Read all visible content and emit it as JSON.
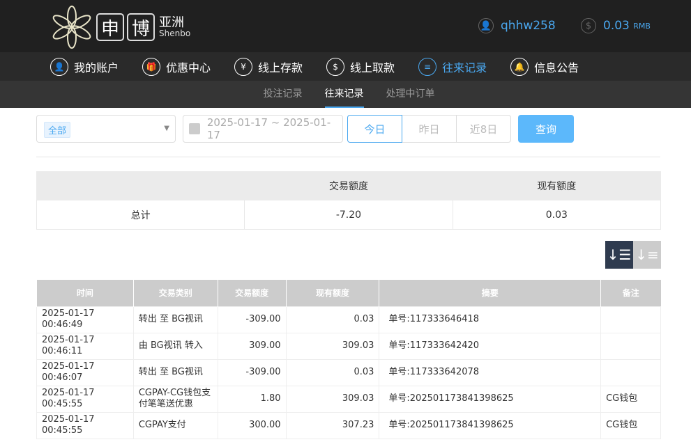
{
  "header": {
    "logo_chars": [
      "申",
      "博"
    ],
    "logo_cn": "亚洲",
    "logo_en": "Shenbo",
    "username": "qhhw258",
    "balance": "0.03",
    "currency": "RMB",
    "accent": "#4aa8f0"
  },
  "nav": [
    {
      "label": "我的账户",
      "icon": "user-icon"
    },
    {
      "label": "优惠中心",
      "icon": "gift-icon"
    },
    {
      "label": "线上存款",
      "icon": "deposit-icon"
    },
    {
      "label": "线上取款",
      "icon": "withdraw-icon"
    },
    {
      "label": "往来记录",
      "icon": "records-icon",
      "active": true
    },
    {
      "label": "信息公告",
      "icon": "bell-icon"
    }
  ],
  "subnav": [
    {
      "label": "投注记录"
    },
    {
      "label": "往来记录",
      "active": true
    },
    {
      "label": "处理中订单"
    }
  ],
  "filters": {
    "type_tag": "全部",
    "date_range": "2025-01-17 ~ 2025-01-17",
    "quick": [
      "今日",
      "昨日",
      "近8日"
    ],
    "query": "查询"
  },
  "summary": {
    "headers": [
      "",
      "交易额度",
      "现有额度"
    ],
    "row": [
      "总计",
      "-7.20",
      "0.03"
    ]
  },
  "table": {
    "headers": [
      "时间",
      "交易类别",
      "交易额度",
      "现有额度",
      "摘要",
      "备注"
    ],
    "rows": [
      [
        "2025-01-17 00:46:49",
        "转出 至 BG视讯",
        "-309.00",
        "0.03",
        "单号:117333646418",
        ""
      ],
      [
        "2025-01-17 00:46:11",
        "由 BG视讯 转入",
        "309.00",
        "309.03",
        "单号:117333642420",
        ""
      ],
      [
        "2025-01-17 00:46:07",
        "转出 至 BG视讯",
        "-309.00",
        "0.03",
        "单号:117333642078",
        ""
      ],
      [
        "2025-01-17 00:45:55",
        "CGPAY-CG钱包支付笔笔送优惠",
        "1.80",
        "309.03",
        "单号:202501173841398625",
        "CG钱包"
      ],
      [
        "2025-01-17 00:45:55",
        "CGPAY支付",
        "300.00",
        "307.23",
        "单号:202501173841398625",
        "CG钱包"
      ]
    ]
  }
}
